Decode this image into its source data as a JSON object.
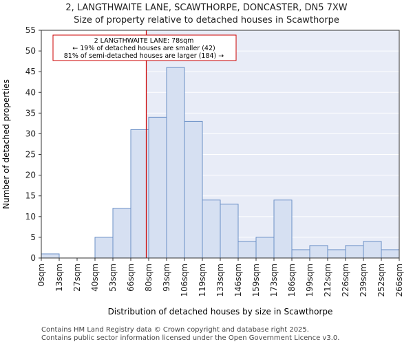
{
  "header": {
    "title_line1": "2, LANGTHWAITE LANE, SCAWTHORPE, DONCASTER, DN5 7XW",
    "title_line2": "Size of property relative to detached houses in Scawthorpe"
  },
  "footer": {
    "line1": "Contains HM Land Registry data © Crown copyright and database right 2025.",
    "line2": "Contains public sector information licensed under the Open Government Licence v3.0."
  },
  "chart_data": {
    "type": "bar",
    "xlabel": "Distribution of detached houses by size in Scawthorpe",
    "ylabel": "Number of detached properties",
    "ylim": [
      0,
      55
    ],
    "yticks": [
      0,
      5,
      10,
      15,
      20,
      25,
      30,
      35,
      40,
      45,
      50,
      55
    ],
    "xtick_labels": [
      "0sqm",
      "13sqm",
      "27sqm",
      "40sqm",
      "53sqm",
      "66sqm",
      "80sqm",
      "93sqm",
      "106sqm",
      "119sqm",
      "133sqm",
      "146sqm",
      "159sqm",
      "173sqm",
      "186sqm",
      "199sqm",
      "212sqm",
      "226sqm",
      "239sqm",
      "252sqm",
      "266sqm"
    ],
    "values": [
      1,
      0,
      0,
      5,
      12,
      31,
      34,
      46,
      33,
      14,
      13,
      4,
      5,
      14,
      2,
      3,
      2,
      3,
      4,
      2
    ],
    "marker_value": 78,
    "marker_color": "#cc0000",
    "bar_fill": "#d6e0f2",
    "bar_edge": "#6a8fc6",
    "shade_fill": "#e8ecf7",
    "annotation": {
      "line1": "2 LANGTHWAITE LANE: 78sqm",
      "line2": "← 19% of detached houses are smaller (42)",
      "line3": "81% of semi-detached houses are larger (184) →"
    }
  }
}
